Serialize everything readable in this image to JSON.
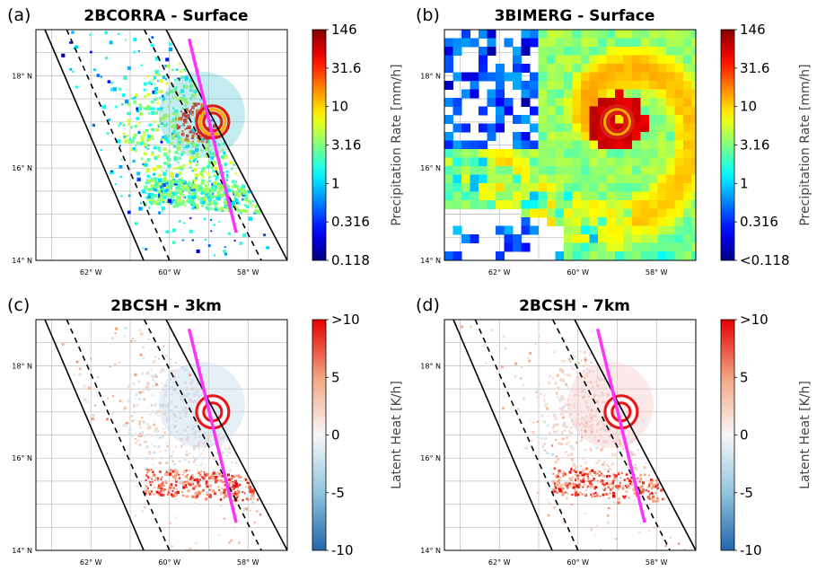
{
  "chart_data": [
    {
      "panel_letter": "(a)",
      "type": "heatmap",
      "title": "2BCORRA - Surface",
      "x_ticks": [
        "62° W",
        "60° W",
        "58° W"
      ],
      "y_ticks": [
        "18° N",
        "16° N",
        "14° N"
      ],
      "x_tick_values": [
        -62,
        -60,
        -58
      ],
      "y_tick_values": [
        18,
        16,
        14
      ],
      "xlim": [
        -63.4,
        -57.0
      ],
      "ylim": [
        14.0,
        19.0
      ],
      "grid": true,
      "colorbar": {
        "label": "Precipitation Rate [mm/h]",
        "ticks": [
          "146",
          "31.6",
          "10",
          "3.16",
          "1",
          "0.316",
          "0.118"
        ],
        "colormap": "jet",
        "scale": "log"
      },
      "storm_center": {
        "lon": -58.9,
        "lat": 17.0
      },
      "eye_ring_value": 40,
      "swath": {
        "inner": true,
        "lines": [
          "solid",
          "dashed",
          "dashed",
          "solid"
        ]
      },
      "transect": {
        "color": "#ff33ff",
        "from": {
          "lon": -59.5,
          "lat": 18.8
        },
        "to": {
          "lon": -58.3,
          "lat": 14.6
        }
      }
    },
    {
      "panel_letter": "(b)",
      "type": "heatmap",
      "title": "3BIMERG - Surface",
      "x_ticks": [
        "62° W",
        "60° W",
        "58° W"
      ],
      "y_ticks": [
        "18° N",
        "16° N",
        "14° N"
      ],
      "x_tick_values": [
        -62,
        -60,
        -58
      ],
      "y_tick_values": [
        18,
        16,
        14
      ],
      "xlim": [
        -63.4,
        -57.0
      ],
      "ylim": [
        14.0,
        19.0
      ],
      "grid": true,
      "colorbar": {
        "label": "Precipitation Rate [mm/h]",
        "ticks": [
          "146",
          "31.6",
          "10",
          "3.16",
          "1",
          "0.316",
          "<0.118"
        ],
        "colormap": "jet",
        "scale": "log"
      },
      "storm_center": {
        "lon": -59.0,
        "lat": 17.0
      },
      "eye_ring_value": 40
    },
    {
      "panel_letter": "(c)",
      "type": "heatmap",
      "title": "2BCSH - 3km",
      "x_ticks": [
        "62° W",
        "60° W",
        "58° W"
      ],
      "y_ticks": [
        "18° N",
        "16° N",
        "14° N"
      ],
      "x_tick_values": [
        -62,
        -60,
        -58
      ],
      "y_tick_values": [
        18,
        16,
        14
      ],
      "xlim": [
        -63.4,
        -57.0
      ],
      "ylim": [
        14.0,
        19.0
      ],
      "grid": true,
      "colorbar": {
        "label": "Latent Heat [K/h]",
        "ticks": [
          ">10",
          "5",
          "0",
          "-5",
          "-10"
        ],
        "colormap": "RdBu_r",
        "scale": "linear"
      },
      "storm_center": {
        "lon": -58.9,
        "lat": 17.0
      },
      "swath": {
        "lines": [
          "solid",
          "dashed",
          "dashed",
          "solid"
        ]
      },
      "transect": {
        "color": "#ff33ff",
        "from": {
          "lon": -59.5,
          "lat": 18.8
        },
        "to": {
          "lon": -58.3,
          "lat": 14.6
        }
      }
    },
    {
      "panel_letter": "(d)",
      "type": "heatmap",
      "title": "2BCSH - 7km",
      "x_ticks": [
        "62° W",
        "60° W",
        "58° W"
      ],
      "y_ticks": [
        "18° N",
        "16° N",
        "14° N"
      ],
      "x_tick_values": [
        -62,
        -60,
        -58
      ],
      "y_tick_values": [
        18,
        16,
        14
      ],
      "xlim": [
        -63.4,
        -57.0
      ],
      "ylim": [
        14.0,
        19.0
      ],
      "grid": true,
      "colorbar": {
        "label": "Latent Heat [K/h]",
        "ticks": [
          ">10",
          "5",
          "0",
          "-5",
          "-10"
        ],
        "colormap": "RdBu_r",
        "scale": "linear"
      },
      "storm_center": {
        "lon": -58.9,
        "lat": 17.0
      },
      "swath": {
        "lines": [
          "solid",
          "dashed",
          "dashed",
          "solid"
        ]
      },
      "transect": {
        "color": "#ff33ff",
        "from": {
          "lon": -59.5,
          "lat": 18.8
        },
        "to": {
          "lon": -58.3,
          "lat": 14.6
        }
      }
    }
  ]
}
